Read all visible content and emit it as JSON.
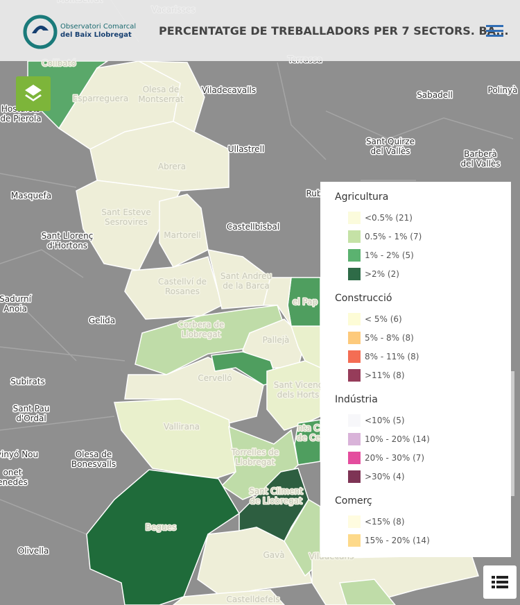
{
  "header": {
    "logo": [
      "Observatori Comarcal",
      "del Baix Llobregat"
    ],
    "title": "PERCENTATGE DE TREBALLADORS PER 7 SECTORS. BA..."
  },
  "map": {
    "labels": [
      [
        "Montserrat"
      ],
      [
        "Vacarisses"
      ],
      [
        "Terrassa"
      ],
      [
        "Collbató"
      ],
      [
        "Esparreguera"
      ],
      [
        "Olesa de",
        "Montserrat"
      ],
      [
        "Viladecavalls"
      ],
      [
        "Sabadell"
      ],
      [
        "Polinyà"
      ],
      [
        "Hostalets",
        "de Pierola"
      ],
      [
        "Sant Quirze",
        "del Vallès"
      ],
      [
        "Barberà",
        "del Vallès"
      ],
      [
        "Ullastrell"
      ],
      [
        "Abrera"
      ],
      [
        "Masquefa"
      ],
      [
        "Rub"
      ],
      [
        "Sant Esteve",
        "Sesrovires"
      ],
      [
        "Castellbisbal"
      ],
      [
        "Sant Llorenç",
        "d'Hortons"
      ],
      [
        "Martorell"
      ],
      [
        "Sant Andreu",
        "de la Barca"
      ],
      [
        "Castellví de",
        "Rosanes"
      ],
      [
        "el Pap"
      ],
      [
        "Sadurní",
        "Anoia"
      ],
      [
        "Gelida"
      ],
      [
        "Corbera de",
        "Llobregat"
      ],
      [
        "Pallejà"
      ],
      [
        "Cervelló"
      ],
      [
        "Subirats"
      ],
      [
        "Sant Vicenç",
        "dels Horts"
      ],
      [
        "Sant Pau",
        "d'Ordal"
      ],
      [
        "Vallirana"
      ],
      [
        "nta C",
        "de Ce"
      ],
      [
        "vinyó Nou"
      ],
      [
        "Olesa de",
        "Bonesvalls"
      ],
      [
        "Torrelles de",
        "Llobregat"
      ],
      [
        "onet",
        "enedès"
      ],
      [
        "Sant Climent",
        "de Llobregat"
      ],
      [
        "Begues"
      ],
      [
        "Olivella"
      ],
      [
        "Gavà"
      ],
      [
        "Viladecans"
      ],
      [
        "Castelldefels"
      ]
    ]
  },
  "legend": [
    {
      "title": "Agricultura",
      "items": [
        {
          "label": "<0.5% (21)",
          "color": "#fbfbdc"
        },
        {
          "label": "0.5% - 1% (7)",
          "color": "#c5e2a6"
        },
        {
          "label": "1% - 2% (5)",
          "color": "#5bb270"
        },
        {
          "label": ">2% (2)",
          "color": "#2e6b47"
        }
      ]
    },
    {
      "title": "Construcció",
      "items": [
        {
          "label": "< 5% (6)",
          "color": "#fdfcd6"
        },
        {
          "label": "5% - 8% (8)",
          "color": "#fdca7c"
        },
        {
          "label": "8% - 11% (8)",
          "color": "#f46d54"
        },
        {
          "label": ">11% (8)",
          "color": "#963c5a"
        }
      ]
    },
    {
      "title": "Indústria",
      "items": [
        {
          "label": "<10% (5)",
          "color": "#f7f7fa"
        },
        {
          "label": "10% - 20% (14)",
          "color": "#d9b3d9"
        },
        {
          "label": "20% - 30% (7)",
          "color": "#e44d9e"
        },
        {
          "label": ">30% (4)",
          "color": "#7e3455"
        }
      ]
    },
    {
      "title": "Comerç",
      "items": [
        {
          "label": "<15% (8)",
          "color": "#fffce0"
        },
        {
          "label": "15% - 20% (14)",
          "color": "#fdd98a"
        }
      ]
    }
  ]
}
